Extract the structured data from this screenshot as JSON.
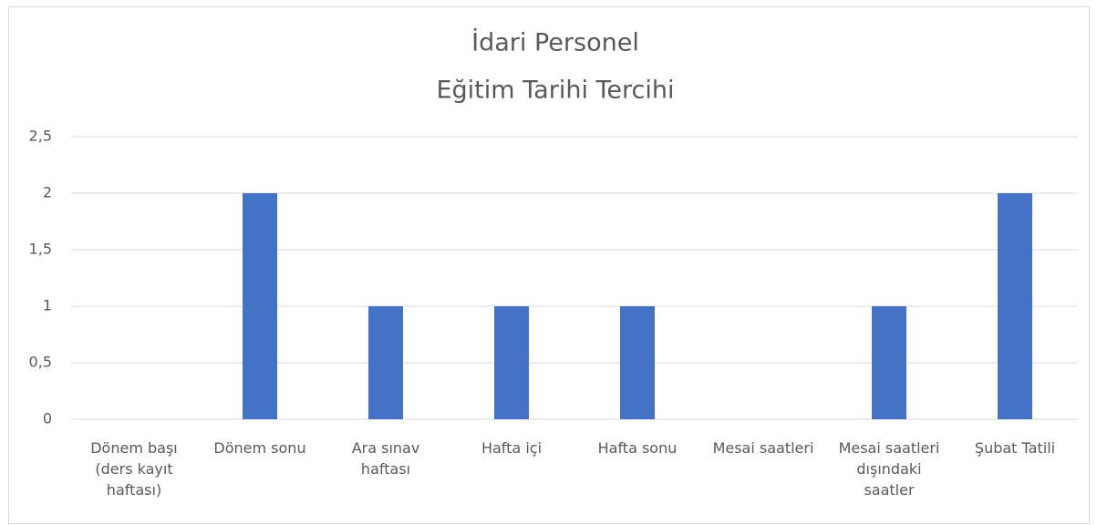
{
  "chart_data": {
    "type": "bar",
    "title": "İdari Personel",
    "subtitle": "Eğitim Tarihi Tercihi",
    "categories": [
      "Dönem başı (ders kayıt haftası)",
      "Dönem sonu",
      "Ara sınav haftası",
      "Hafta içi",
      "Hafta sonu",
      "Mesai saatleri",
      "Mesai saatleri dışındaki saatler",
      "Şubat Tatili"
    ],
    "values": [
      0,
      2,
      1,
      1,
      1,
      0,
      1,
      2
    ],
    "color": "#4472c4",
    "ylim": [
      0,
      2.5
    ],
    "yticks": [
      0,
      {
        "value": 0.5,
        "label": "0,5"
      },
      1,
      {
        "value": 1.5,
        "label": "1,5"
      },
      2,
      {
        "value": 2.5,
        "label": "2,5"
      }
    ],
    "grid": true
  }
}
